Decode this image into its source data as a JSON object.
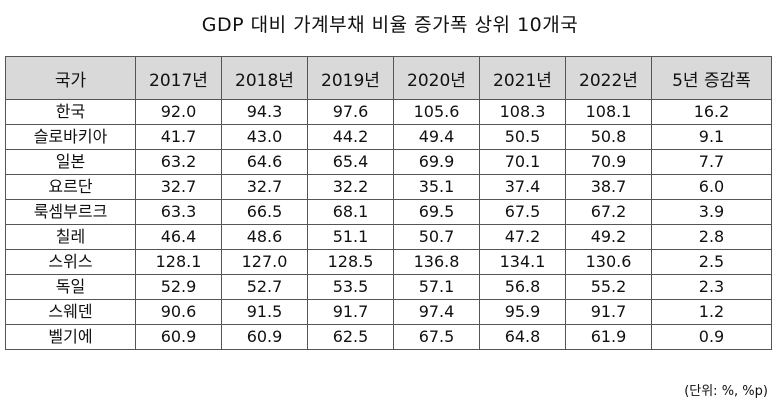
{
  "title": "GDP 대비 가계부채 비율 증가폭 상위 10개국",
  "table": {
    "headers": [
      "국가",
      "2017년",
      "2018년",
      "2019년",
      "2020년",
      "2021년",
      "2022년",
      "5년 증감폭"
    ],
    "rows": [
      [
        "한국",
        "92.0",
        "94.3",
        "97.6",
        "105.6",
        "108.3",
        "108.1",
        "16.2"
      ],
      [
        "슬로바키아",
        "41.7",
        "43.0",
        "44.2",
        "49.4",
        "50.5",
        "50.8",
        "9.1"
      ],
      [
        "일본",
        "63.2",
        "64.6",
        "65.4",
        "69.9",
        "70.1",
        "70.9",
        "7.7"
      ],
      [
        "요르단",
        "32.7",
        "32.7",
        "32.2",
        "35.1",
        "37.4",
        "38.7",
        "6.0"
      ],
      [
        "룩셈부르크",
        "63.3",
        "66.5",
        "68.1",
        "69.5",
        "67.5",
        "67.2",
        "3.9"
      ],
      [
        "칠레",
        "46.4",
        "48.6",
        "51.1",
        "50.7",
        "47.2",
        "49.2",
        "2.8"
      ],
      [
        "스위스",
        "128.1",
        "127.0",
        "128.5",
        "136.8",
        "134.1",
        "130.6",
        "2.5"
      ],
      [
        "독일",
        "52.9",
        "52.7",
        "53.5",
        "57.1",
        "56.8",
        "55.2",
        "2.3"
      ],
      [
        "스웨덴",
        "90.6",
        "91.5",
        "91.7",
        "97.4",
        "95.9",
        "91.7",
        "1.2"
      ],
      [
        "벨기에",
        "60.9",
        "60.9",
        "62.5",
        "67.5",
        "64.8",
        "61.9",
        "0.9"
      ]
    ]
  },
  "unit_note": "(단위: %, %p)"
}
